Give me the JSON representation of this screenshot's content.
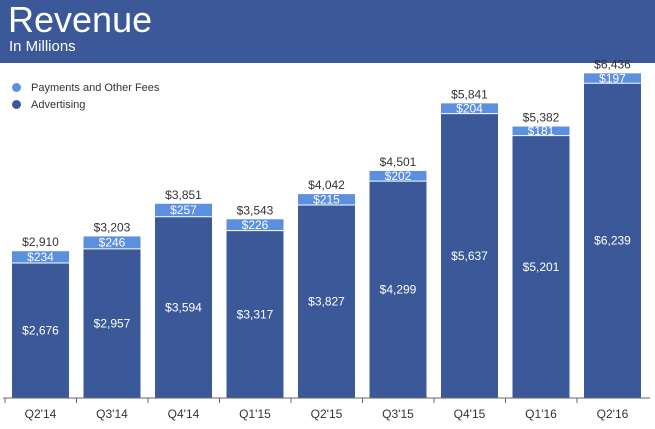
{
  "header": {
    "title": "Revenue",
    "subtitle": "In Millions"
  },
  "colors": {
    "header_bg": "#3b5998",
    "advertising": "#3b5998",
    "payments": "#5b8fe0",
    "axis": "#666666"
  },
  "chart_data": {
    "type": "bar",
    "stacked": true,
    "title": "Revenue",
    "subtitle": "In Millions",
    "xlabel": "",
    "ylabel": "",
    "ylim": [
      0,
      6800
    ],
    "categories": [
      "Q2'14",
      "Q3'14",
      "Q4'14",
      "Q1'15",
      "Q2'15",
      "Q3'15",
      "Q4'15",
      "Q1'16",
      "Q2'16"
    ],
    "series": [
      {
        "name": "Advertising",
        "values": [
          2676,
          2957,
          3594,
          3317,
          3827,
          4299,
          5637,
          5201,
          6239
        ],
        "labels": [
          "$2,676",
          "$2,957",
          "$3,594",
          "$3,317",
          "$3,827",
          "$4,299",
          "$5,637",
          "$5,201",
          "$6,239"
        ]
      },
      {
        "name": "Payments and Other Fees",
        "values": [
          234,
          246,
          257,
          226,
          215,
          202,
          204,
          181,
          197
        ],
        "labels": [
          "$234",
          "$246",
          "$257",
          "$226",
          "$215",
          "$202",
          "$204",
          "$181",
          "$197"
        ]
      }
    ],
    "totals": [
      2910,
      3203,
      3851,
      3543,
      4042,
      4501,
      5841,
      5382,
      6436
    ],
    "total_labels": [
      "$2,910",
      "$3,203",
      "$3,851",
      "$3,543",
      "$4,042",
      "$4,501",
      "$5,841",
      "$5,382",
      "$6,436"
    ],
    "legend": [
      "Payments and Other Fees",
      "Advertising"
    ],
    "legend_position": "top-left"
  }
}
